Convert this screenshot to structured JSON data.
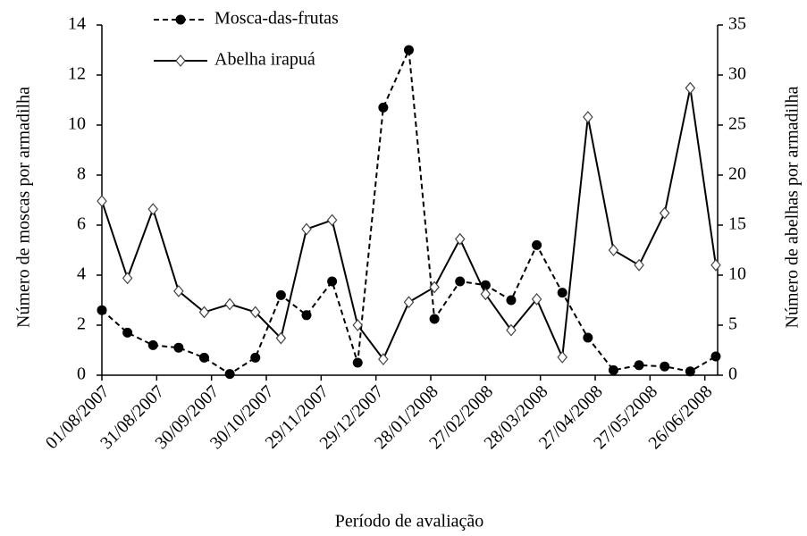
{
  "chart_data": {
    "type": "line",
    "x_label": "Período de avaliação",
    "y_label": "Número de moscas por armadilha",
    "y2_label": "Número de abelhas por armadilha",
    "x": [
      "01/08/2007",
      "15/08/2007",
      "29/08/2007",
      "12/09/2007",
      "26/09/2007",
      "10/10/2007",
      "24/10/2007",
      "07/11/2007",
      "21/11/2007",
      "05/12/2007",
      "19/12/2007",
      "02/01/2008",
      "16/01/2008",
      "30/01/2008",
      "13/02/2008",
      "27/02/2008",
      "12/03/2008",
      "26/03/2008",
      "09/04/2008",
      "23/04/2008",
      "07/05/2008",
      "21/05/2008",
      "04/06/2008",
      "18/06/2008",
      "02/07/2008"
    ],
    "xlim": [
      "01/08/2007",
      "03/07/2008"
    ],
    "xticks": [
      "01/08/2007",
      "31/08/2007",
      "30/09/2007",
      "30/10/2007",
      "29/11/2007",
      "29/12/2007",
      "28/01/2008",
      "27/02/2008",
      "28/03/2008",
      "27/04/2008",
      "27/05/2008",
      "26/06/2008"
    ],
    "ylim": [
      0,
      14
    ],
    "yticks": [
      0,
      2,
      4,
      6,
      8,
      10,
      12,
      14
    ],
    "y2lim": [
      0,
      35
    ],
    "y2ticks": [
      0,
      5,
      10,
      15,
      20,
      25,
      30,
      35
    ],
    "series": [
      {
        "name": "Mosca-das-frutas",
        "color": "#000000",
        "marker": "circle",
        "dashed": true,
        "values": [
          2.6,
          1.7,
          1.2,
          1.1,
          0.7,
          0.05,
          0.7,
          3.2,
          2.4,
          3.75,
          0.5,
          10.7,
          13.0,
          2.25,
          3.75,
          3.6,
          3.0,
          5.2,
          3.3,
          1.5,
          0.2,
          0.4,
          0.35,
          0.15,
          0.75
        ]
      },
      {
        "name": "Abelha irapuá",
        "color": "#000000",
        "marker": "diamond",
        "dashed": false,
        "axis": "y2",
        "values": [
          17.4,
          9.7,
          16.6,
          8.4,
          6.3,
          7.1,
          6.3,
          3.7,
          14.6,
          15.5,
          5.0,
          1.6,
          7.3,
          8.8,
          13.6,
          8.1,
          4.5,
          7.6,
          1.8,
          25.8,
          12.5,
          11.0,
          16.2,
          28.7,
          11.0
        ]
      }
    ]
  }
}
